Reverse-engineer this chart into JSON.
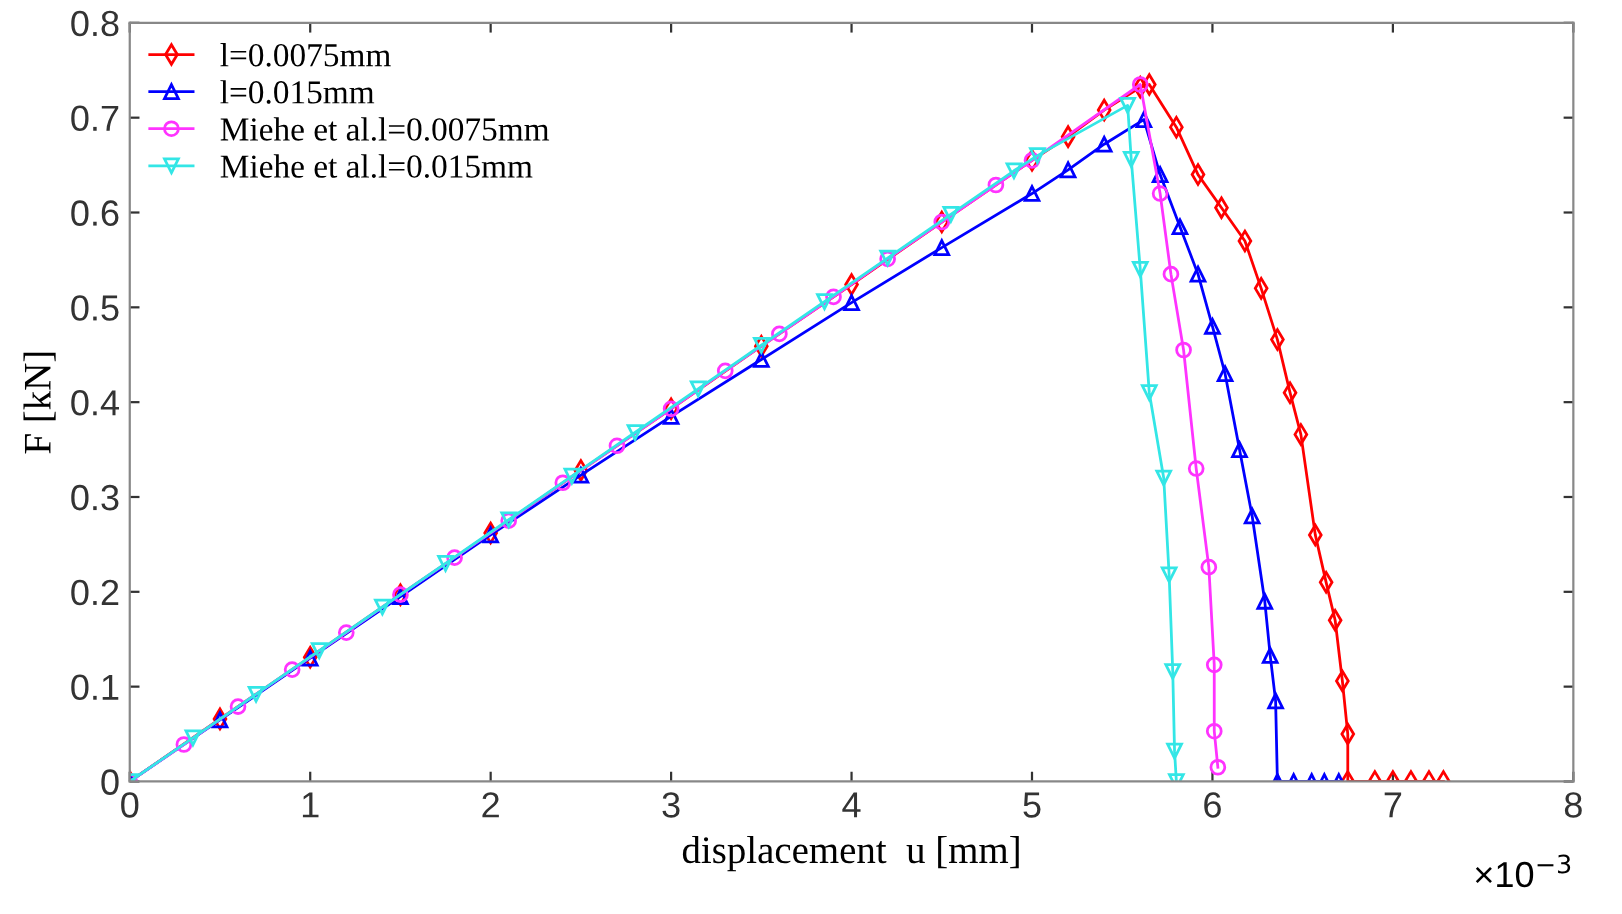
{
  "chart_data": {
    "type": "line",
    "xlabel": "displacement  u [mm]",
    "ylabel": "F [kN]",
    "xlim": [
      0,
      8
    ],
    "xticks": [
      0,
      1,
      2,
      3,
      4,
      5,
      6,
      7,
      8
    ],
    "ylim": [
      0,
      0.8
    ],
    "yticks": [
      0,
      0.1,
      0.2,
      0.3,
      0.4,
      0.5,
      0.6,
      0.7,
      0.8
    ],
    "annotations": [
      "×10$^{−3}$"
    ],
    "legend": "top left",
    "grid": false,
    "series": [
      {
        "name": "l=0.0075mm",
        "color": "#ff0000",
        "marker": "diamond",
        "x": [
          0,
          0.5,
          1,
          1.5,
          2,
          2.5,
          3,
          3.5,
          4,
          4.5,
          5,
          5.2,
          5.4,
          5.6,
          5.65,
          5.8,
          5.92,
          6.05,
          6.18,
          6.27,
          6.36,
          6.43,
          6.49,
          6.57,
          6.63,
          6.68,
          6.72,
          6.75,
          6.75,
          6.9,
          7.0,
          7.1,
          7.2,
          7.28
        ],
        "values": [
          0,
          0.066,
          0.131,
          0.197,
          0.262,
          0.328,
          0.393,
          0.459,
          0.524,
          0.59,
          0.655,
          0.68,
          0.708,
          0.732,
          0.735,
          0.69,
          0.64,
          0.605,
          0.57,
          0.52,
          0.466,
          0.41,
          0.366,
          0.26,
          0.21,
          0.17,
          0.106,
          0.05,
          0,
          0,
          0,
          0,
          0,
          0
        ]
      },
      {
        "name": "l=0.015mm",
        "color": "#0000ff",
        "marker": "triangle",
        "x": [
          0,
          0.5,
          1,
          1.5,
          2,
          2.5,
          3,
          3.5,
          4,
          4.5,
          5,
          5.2,
          5.4,
          5.62,
          5.71,
          5.82,
          5.92,
          6.0,
          6.07,
          6.15,
          6.22,
          6.29,
          6.32,
          6.35,
          6.36,
          6.45,
          6.55,
          6.62,
          6.7
        ],
        "values": [
          0,
          0.065,
          0.13,
          0.195,
          0.26,
          0.323,
          0.385,
          0.445,
          0.505,
          0.563,
          0.62,
          0.645,
          0.672,
          0.698,
          0.64,
          0.585,
          0.535,
          0.48,
          0.43,
          0.35,
          0.28,
          0.19,
          0.133,
          0.085,
          0,
          0,
          0,
          0,
          0
        ]
      },
      {
        "name": "Miehe et al.l=0.0075mm",
        "color": "#ff33ff",
        "marker": "circle",
        "x": [
          0,
          0.3,
          0.6,
          0.9,
          1.2,
          1.5,
          1.8,
          2.1,
          2.4,
          2.7,
          3.0,
          3.3,
          3.6,
          3.9,
          4.2,
          4.5,
          4.8,
          5.0,
          5.6,
          5.71,
          5.77,
          5.84,
          5.91,
          5.98,
          6.01,
          6.01,
          6.03
        ],
        "values": [
          0,
          0.039,
          0.079,
          0.118,
          0.157,
          0.197,
          0.236,
          0.275,
          0.315,
          0.354,
          0.393,
          0.433,
          0.472,
          0.511,
          0.551,
          0.59,
          0.629,
          0.655,
          0.735,
          0.62,
          0.535,
          0.455,
          0.33,
          0.226,
          0.123,
          0.053,
          0.015
        ]
      },
      {
        "name": "Miehe et al.l=0.015mm",
        "color": "#33e6e6",
        "marker": "triangle_down",
        "x": [
          0,
          0.35,
          0.7,
          1.05,
          1.4,
          1.75,
          2.1,
          2.45,
          2.8,
          3.15,
          3.5,
          3.85,
          4.2,
          4.55,
          4.9,
          5.03,
          5.53,
          5.55,
          5.6,
          5.65,
          5.73,
          5.76,
          5.78,
          5.79,
          5.8
        ],
        "values": [
          0,
          0.046,
          0.092,
          0.138,
          0.184,
          0.23,
          0.276,
          0.322,
          0.368,
          0.414,
          0.46,
          0.506,
          0.552,
          0.598,
          0.644,
          0.66,
          0.713,
          0.656,
          0.54,
          0.41,
          0.32,
          0.218,
          0.116,
          0.032,
          0
        ]
      }
    ]
  }
}
